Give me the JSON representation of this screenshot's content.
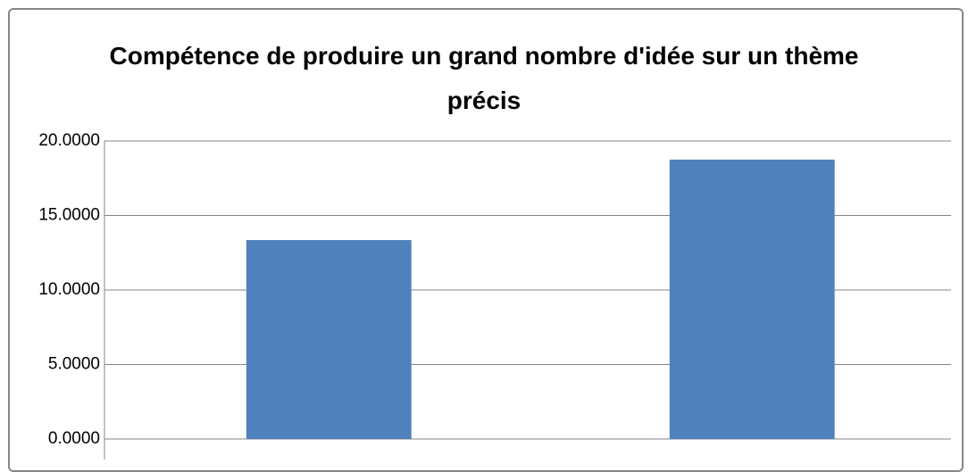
{
  "chart_data": {
    "type": "bar",
    "title": "Compétence de produire un grand nombre d'idée sur un thème précis",
    "categories": [
      null,
      null
    ],
    "values": [
      13.35,
      18.75
    ],
    "color": "#4f81bd",
    "ylim": [
      0,
      20
    ],
    "yticks": [
      {
        "value": 0,
        "label": "0.0000"
      },
      {
        "value": 5,
        "label": "5.0000"
      },
      {
        "value": 10,
        "label": "10.0000"
      },
      {
        "value": 15,
        "label": "15.0000"
      },
      {
        "value": 20,
        "label": "20.0000"
      }
    ],
    "grid": true
  }
}
